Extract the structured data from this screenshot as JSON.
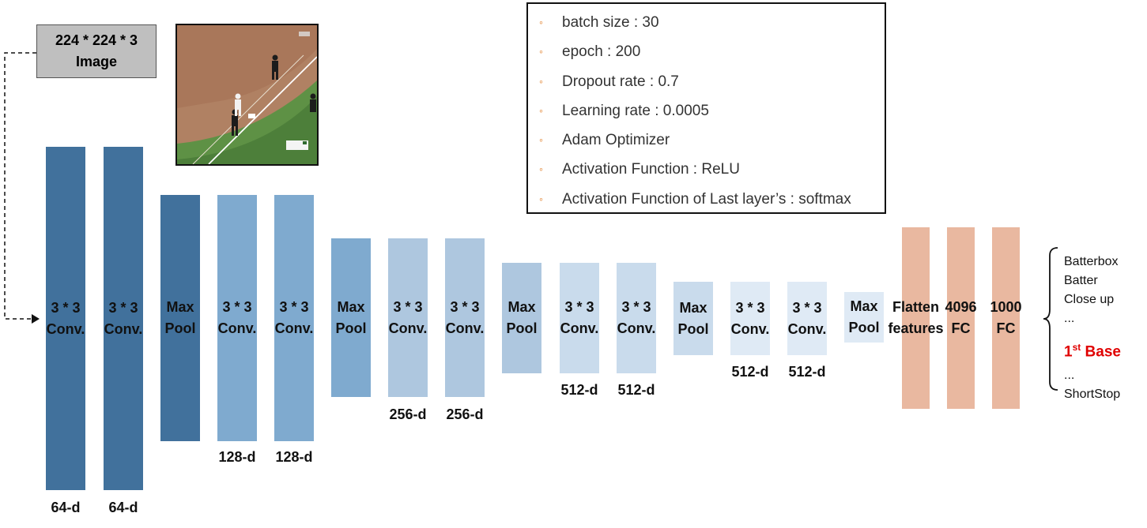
{
  "input": {
    "line1": "224 * 224 * 3",
    "line2": "Image"
  },
  "params": [
    "batch size : 30",
    "epoch : 200",
    "Dropout rate : 0.7",
    "Learning rate : 0.0005",
    "Adam Optimizer",
    "Activation Function : ReLU",
    "Activation Function of Last layer’s : softmax"
  ],
  "layers": [
    {
      "label": "3 * 3\nConv.",
      "dim": "64-d"
    },
    {
      "label": "3 * 3\nConv.",
      "dim": "64-d"
    },
    {
      "label": "Max\nPool",
      "dim": ""
    },
    {
      "label": "3 * 3\nConv.",
      "dim": "128-d"
    },
    {
      "label": "3 * 3\nConv.",
      "dim": "128-d"
    },
    {
      "label": "Max\nPool",
      "dim": ""
    },
    {
      "label": "3 * 3\nConv.",
      "dim": "256-d"
    },
    {
      "label": "3 * 3\nConv.",
      "dim": "256-d"
    },
    {
      "label": "Max\nPool",
      "dim": ""
    },
    {
      "label": "3 * 3\nConv.",
      "dim": "512-d"
    },
    {
      "label": "3 * 3\nConv.",
      "dim": "512-d"
    },
    {
      "label": "Max\nPool",
      "dim": ""
    },
    {
      "label": "3 * 3\nConv.",
      "dim": "512-d"
    },
    {
      "label": "3 * 3\nConv.",
      "dim": "512-d"
    },
    {
      "label": "Max\nPool",
      "dim": ""
    },
    {
      "label": "Flatten\nfeatures",
      "dim": ""
    },
    {
      "label": "4096\nFC",
      "dim": ""
    },
    {
      "label": "1000\nFC",
      "dim": ""
    }
  ],
  "classes": {
    "items_top": [
      "Batterbox",
      "Batter",
      "Close up",
      "..."
    ],
    "highlight_main": "1",
    "highlight_sup": "st",
    "highlight_rest": " Base",
    "items_bottom": [
      "...",
      "ShortStop"
    ]
  },
  "colors": {
    "conv_block_1": "#41719c",
    "conv_block_2": "#7faacf",
    "conv_block_3": "#aec7df",
    "conv_block_4": "#c9dbec",
    "conv_block_5": "#dfeaf5",
    "fully_connected": "#e9b8a0",
    "bullet": "#e07b22",
    "highlight": "#e00000"
  }
}
